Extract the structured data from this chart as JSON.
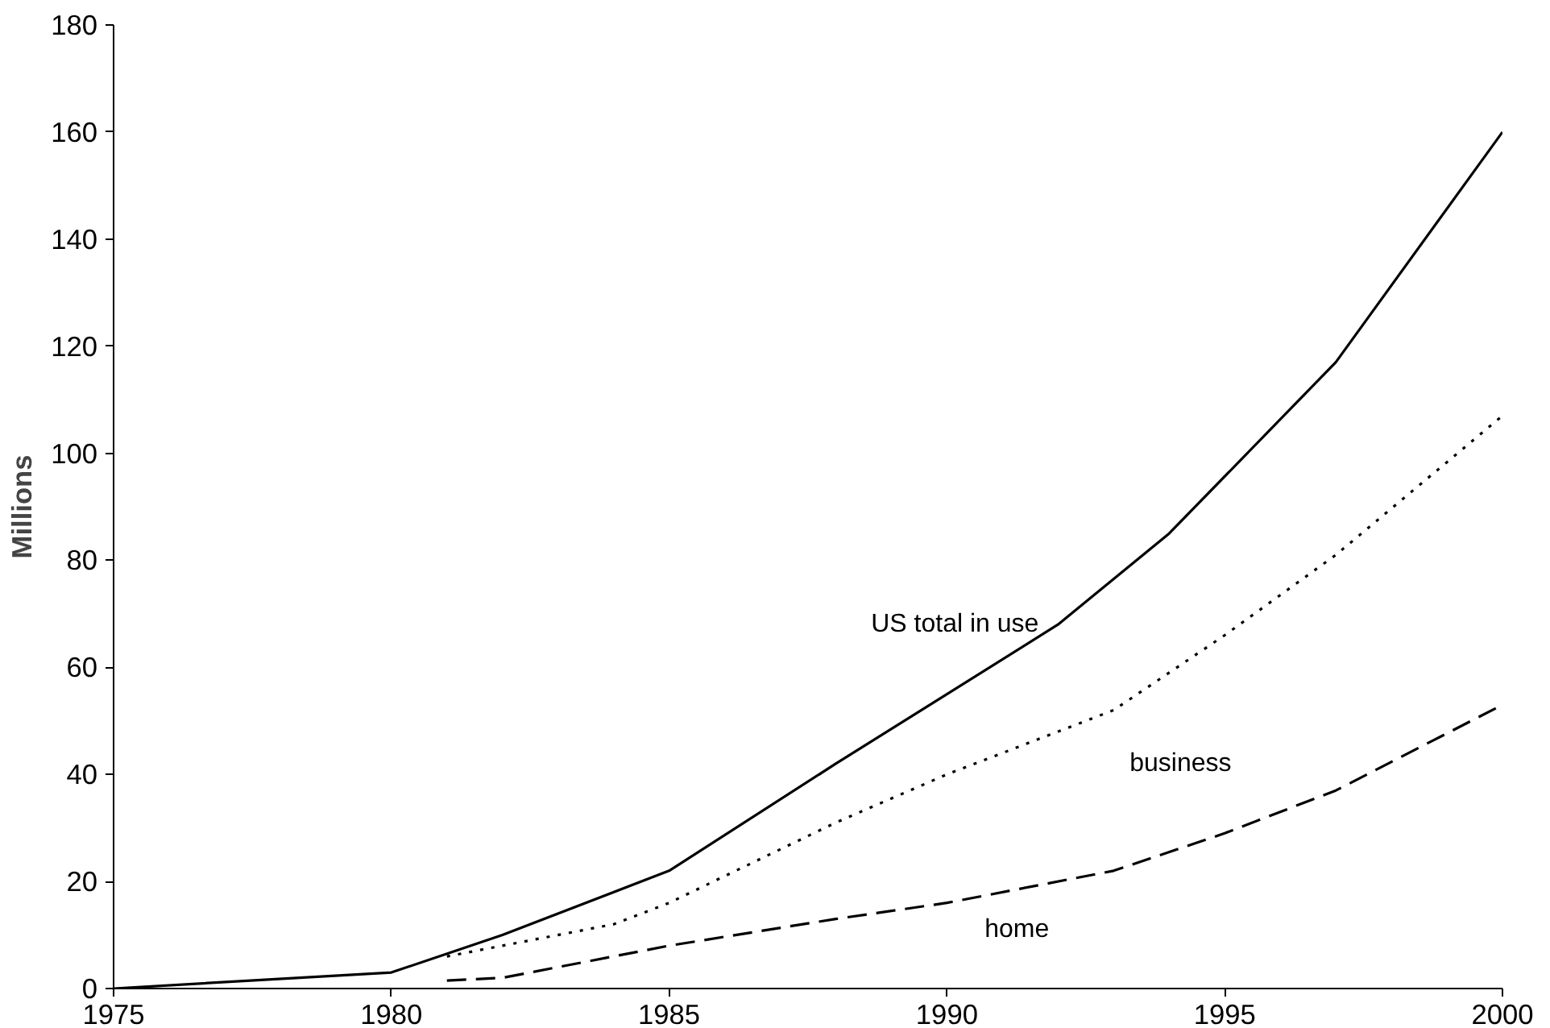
{
  "chart_data": {
    "type": "line",
    "ylabel": "Millions",
    "xlim": [
      1975,
      2000
    ],
    "ylim": [
      0,
      180
    ],
    "xticks": [
      1975,
      1980,
      1985,
      1990,
      1995,
      2000
    ],
    "yticks": [
      0,
      20,
      40,
      60,
      80,
      100,
      120,
      140,
      160,
      180
    ],
    "grid": false,
    "legend": false,
    "series": [
      {
        "name": "US total in use",
        "color": "#000000",
        "line_style": "solid",
        "x": [
          1975,
          1980,
          1982,
          1985,
          1988,
          1990,
          1992,
          1994,
          1997,
          2000
        ],
        "values": [
          0,
          3,
          10,
          22,
          42,
          55,
          68,
          85,
          117,
          160
        ]
      },
      {
        "name": "business",
        "color": "#000000",
        "line_style": "dotted",
        "x": [
          1981,
          1984,
          1985,
          1988,
          1990,
          1993,
          1995,
          1997,
          2000
        ],
        "values": [
          6,
          12,
          16,
          31,
          40,
          52,
          66,
          81,
          107
        ]
      },
      {
        "name": "home",
        "color": "#000000",
        "line_style": "dashed",
        "x": [
          1981,
          1982,
          1985,
          1988,
          1990,
          1993,
          1995,
          1997,
          2000
        ],
        "values": [
          1.5,
          2,
          8,
          13,
          16,
          22,
          29,
          37,
          53
        ]
      }
    ]
  }
}
